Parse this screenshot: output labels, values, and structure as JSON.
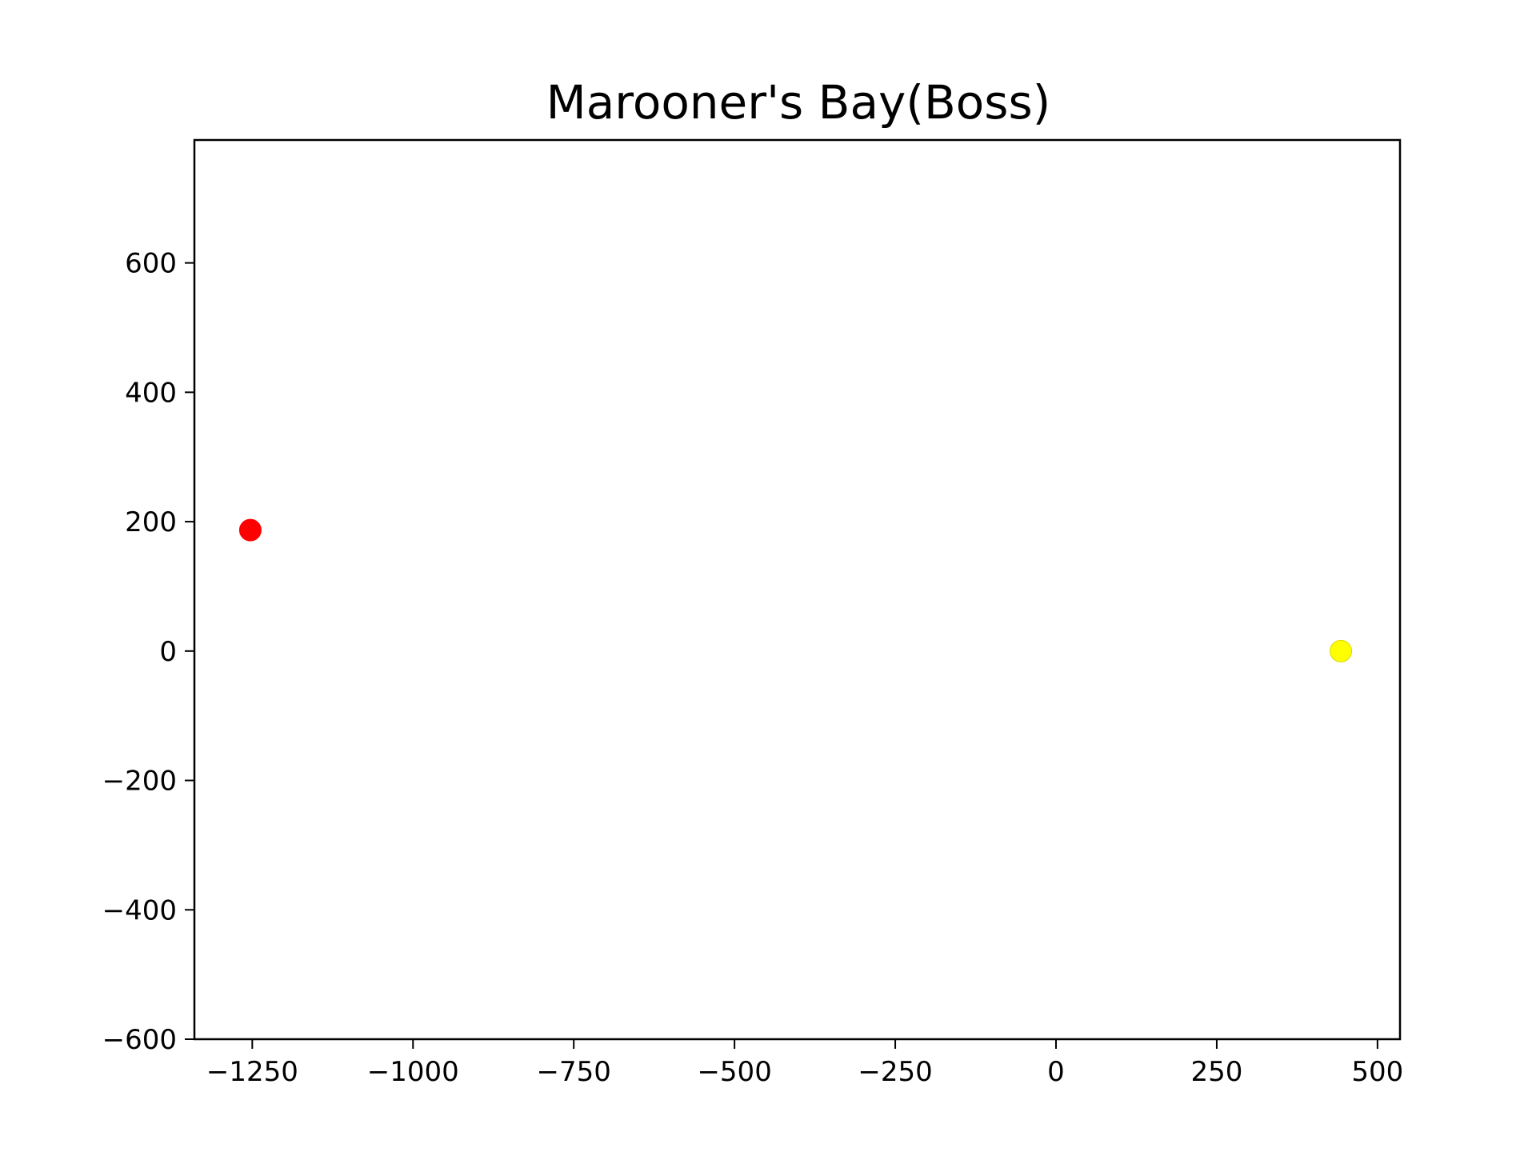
{
  "chart_data": {
    "type": "scatter",
    "title": "Marooner's Bay(Boss)",
    "xlabel": "",
    "ylabel": "",
    "xlim": [
      -1340,
      535
    ],
    "ylim": [
      -600,
      790
    ],
    "grid": false,
    "x_ticks": [
      {
        "value": -1250,
        "label": "−1250"
      },
      {
        "value": -1000,
        "label": "−1000"
      },
      {
        "value": -750,
        "label": "−750"
      },
      {
        "value": -500,
        "label": "−500"
      },
      {
        "value": -250,
        "label": "−250"
      },
      {
        "value": 0,
        "label": "0"
      },
      {
        "value": 250,
        "label": "250"
      },
      {
        "value": 500,
        "label": "500"
      }
    ],
    "y_ticks": [
      {
        "value": 600,
        "label": "600"
      },
      {
        "value": 400,
        "label": "400"
      },
      {
        "value": 200,
        "label": "200"
      },
      {
        "value": 0,
        "label": "0"
      },
      {
        "value": -200,
        "label": "−200"
      },
      {
        "value": -400,
        "label": "−400"
      },
      {
        "value": -600,
        "label": "−600"
      }
    ],
    "points": [
      {
        "x": -1253,
        "y": 187,
        "color": "#ff0000"
      },
      {
        "x": 443,
        "y": 0,
        "color": "#ffff00"
      }
    ]
  }
}
